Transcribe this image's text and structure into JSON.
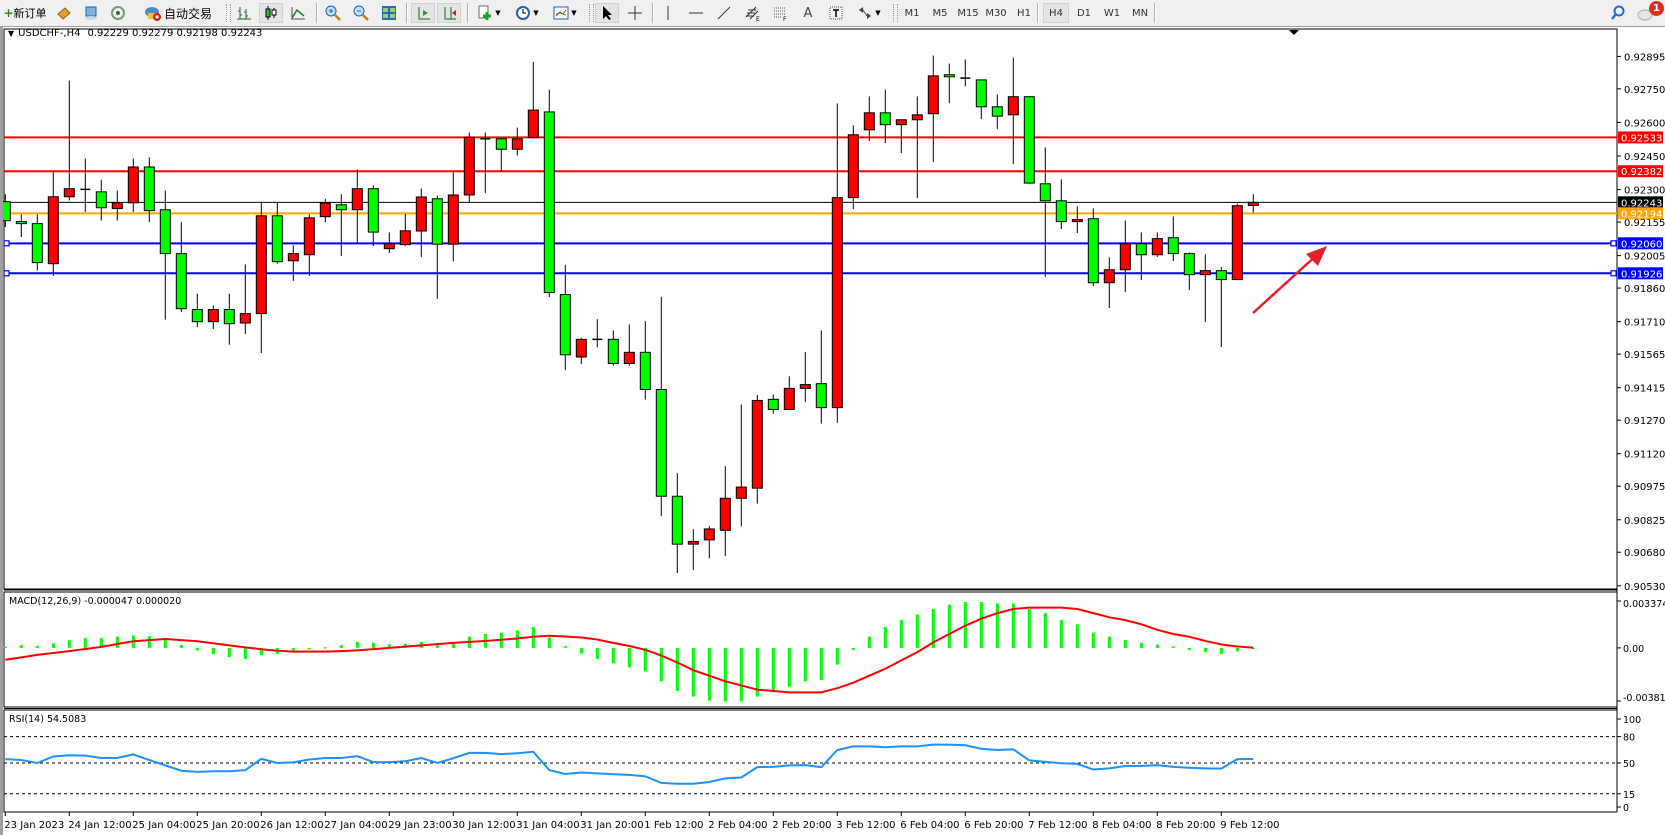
{
  "toolbar": {
    "new_order_label": "新订单",
    "autotrading_label": "自动交易",
    "icons": [
      "new-order-icon",
      "market-watch-icon",
      "data-window-icon",
      "navigator-icon",
      "autotrading-icon",
      "bar-chart-icon",
      "candlestick-chart-icon",
      "line-chart-icon",
      "zoom-in-icon",
      "zoom-out-icon",
      "tile-windows-icon",
      "auto-scroll-icon",
      "chart-shift-icon",
      "new-chart-icon",
      "periods-icon",
      "templates-icon",
      "cursor-icon",
      "crosshair-icon",
      "vertical-line-icon",
      "horizontal-line-icon",
      "trendline-icon",
      "fibonacci-expansion-icon",
      "fibonacci-fan-icon",
      "text-icon",
      "text-label-icon",
      "arrows-icon",
      "search-icon",
      "notifications-icon"
    ],
    "timeframes": [
      "M1",
      "M5",
      "M15",
      "M30",
      "H1",
      "H4",
      "D1",
      "W1",
      "MN"
    ],
    "selected_timeframe": "H4",
    "notification_count": "1"
  },
  "chart_header": {
    "symbol_period": "USDCHF-,H4",
    "ohlc": "0.92229 0.92279 0.92198 0.92243"
  },
  "chart_data": {
    "type": "candlestick",
    "symbol": "USDCHF-",
    "timeframe": "H4",
    "ylim": [
      0.9053,
      0.92895
    ],
    "price_ticks": [
      "0.92895",
      "0.92750",
      "0.92600",
      "0.92450",
      "0.92300",
      "0.92155",
      "0.92005",
      "0.91860",
      "0.91710",
      "0.91565",
      "0.91415",
      "0.91270",
      "0.91120",
      "0.90975",
      "0.90825",
      "0.90680",
      "0.90530"
    ],
    "x_tick_labels": [
      "23 Jan 2023",
      "24 Jan 12:00",
      "25 Jan 04:00",
      "25 Jan 20:00",
      "26 Jan 12:00",
      "27 Jan 04:00",
      "29 Jan 23:00",
      "30 Jan 12:00",
      "31 Jan 04:00",
      "31 Jan 20:00",
      "1 Feb 12:00",
      "2 Feb 04:00",
      "2 Feb 20:00",
      "3 Feb 12:00",
      "6 Feb 04:00",
      "6 Feb 20:00",
      "7 Feb 12:00",
      "8 Feb 04:00",
      "8 Feb 20:00",
      "9 Feb 12:00"
    ],
    "x_tick_every_candles": 4,
    "colors": {
      "bull": "#ff0000",
      "bear": "#00ff00",
      "outline": "#000000"
    },
    "candles_ohlc": [
      [
        0.92246,
        0.92279,
        0.92133,
        0.92161
      ],
      [
        0.92157,
        0.92189,
        0.92088,
        0.92148
      ],
      [
        0.92148,
        0.92189,
        0.91939,
        0.91974
      ],
      [
        0.91969,
        0.92378,
        0.91914,
        0.92268
      ],
      [
        0.92268,
        0.92787,
        0.92252,
        0.92304
      ],
      [
        0.92301,
        0.92439,
        0.922,
        0.92301
      ],
      [
        0.9229,
        0.92344,
        0.92162,
        0.92219
      ],
      [
        0.92215,
        0.92296,
        0.92162,
        0.92241
      ],
      [
        0.92241,
        0.92439,
        0.922,
        0.92401
      ],
      [
        0.92401,
        0.92444,
        0.92155,
        0.92206
      ],
      [
        0.9221,
        0.92296,
        0.91719,
        0.92014
      ],
      [
        0.92014,
        0.92154,
        0.91753,
        0.91768
      ],
      [
        0.91764,
        0.91835,
        0.91686,
        0.9171
      ],
      [
        0.9171,
        0.91783,
        0.91677,
        0.91764
      ],
      [
        0.91764,
        0.91835,
        0.91607,
        0.91701
      ],
      [
        0.91704,
        0.91966,
        0.91655,
        0.91746
      ],
      [
        0.91746,
        0.92246,
        0.9157,
        0.92183
      ],
      [
        0.92183,
        0.9224,
        0.91969,
        0.91978
      ],
      [
        0.91982,
        0.92051,
        0.91892,
        0.92014
      ],
      [
        0.92009,
        0.92189,
        0.91914,
        0.92174
      ],
      [
        0.92179,
        0.92259,
        0.92155,
        0.9224
      ],
      [
        0.92232,
        0.92279,
        0.92003,
        0.9221
      ],
      [
        0.9221,
        0.9239,
        0.92063,
        0.92304
      ],
      [
        0.92304,
        0.92319,
        0.92048,
        0.9211
      ],
      [
        0.92036,
        0.92109,
        0.92017,
        0.92058
      ],
      [
        0.92054,
        0.92192,
        0.92048,
        0.92116
      ],
      [
        0.92115,
        0.92305,
        0.91998,
        0.92267
      ],
      [
        0.92259,
        0.92273,
        0.91812,
        0.92056
      ],
      [
        0.92056,
        0.92377,
        0.91979,
        0.92276
      ],
      [
        0.92276,
        0.92555,
        0.92241,
        0.92533
      ],
      [
        0.92527,
        0.92555,
        0.92284,
        0.92527
      ],
      [
        0.92527,
        0.92527,
        0.92383,
        0.9248
      ],
      [
        0.9248,
        0.92577,
        0.92453,
        0.92527
      ],
      [
        0.92533,
        0.92871,
        0.92533,
        0.92655
      ],
      [
        0.92647,
        0.92746,
        0.9182,
        0.9184
      ],
      [
        0.91831,
        0.91964,
        0.91495,
        0.91562
      ],
      [
        0.91552,
        0.91638,
        0.91521,
        0.91631
      ],
      [
        0.91631,
        0.91721,
        0.91596,
        0.91631
      ],
      [
        0.91631,
        0.91671,
        0.91513,
        0.91523
      ],
      [
        0.91523,
        0.91698,
        0.91513,
        0.91573
      ],
      [
        0.91573,
        0.91712,
        0.91362,
        0.91407
      ],
      [
        0.91407,
        0.91821,
        0.90841,
        0.9093
      ],
      [
        0.9093,
        0.91033,
        0.90587,
        0.90716
      ],
      [
        0.90716,
        0.90783,
        0.906,
        0.90728
      ],
      [
        0.90735,
        0.90796,
        0.90653,
        0.90784
      ],
      [
        0.90778,
        0.91064,
        0.90663,
        0.90921
      ],
      [
        0.90921,
        0.9134,
        0.90795,
        0.90971
      ],
      [
        0.90966,
        0.91382,
        0.90897,
        0.91358
      ],
      [
        0.91363,
        0.91385,
        0.91299,
        0.91318
      ],
      [
        0.91318,
        0.91466,
        0.91318,
        0.91412
      ],
      [
        0.91412,
        0.91574,
        0.91352,
        0.91429
      ],
      [
        0.91433,
        0.91671,
        0.91255,
        0.91326
      ],
      [
        0.91326,
        0.92685,
        0.91258,
        0.92264
      ],
      [
        0.92264,
        0.92587,
        0.92213,
        0.92545
      ],
      [
        0.92567,
        0.92716,
        0.92517,
        0.92643
      ],
      [
        0.92643,
        0.92747,
        0.92508,
        0.9259
      ],
      [
        0.9259,
        0.92612,
        0.92463,
        0.92612
      ],
      [
        0.92612,
        0.92716,
        0.92262,
        0.92634
      ],
      [
        0.92639,
        0.92899,
        0.92423,
        0.92808
      ],
      [
        0.92813,
        0.92863,
        0.92686,
        0.92804
      ],
      [
        0.92798,
        0.92881,
        0.92762,
        0.92798
      ],
      [
        0.9279,
        0.9279,
        0.92615,
        0.9267
      ],
      [
        0.9267,
        0.92725,
        0.9257,
        0.92628
      ],
      [
        0.92634,
        0.9289,
        0.92414,
        0.92715
      ],
      [
        0.92715,
        0.92715,
        0.92326,
        0.92329
      ],
      [
        0.92326,
        0.92488,
        0.9191,
        0.9225
      ],
      [
        0.9225,
        0.92346,
        0.92124,
        0.92157
      ],
      [
        0.92157,
        0.92225,
        0.92106,
        0.92166
      ],
      [
        0.9217,
        0.92216,
        0.91869,
        0.91884
      ],
      [
        0.91884,
        0.91997,
        0.91771,
        0.91942
      ],
      [
        0.91942,
        0.92162,
        0.91843,
        0.92058
      ],
      [
        0.92058,
        0.92109,
        0.91896,
        0.92009
      ],
      [
        0.92009,
        0.92109,
        0.91999,
        0.92081
      ],
      [
        0.92085,
        0.9218,
        0.91981,
        0.92014
      ],
      [
        0.92014,
        0.9202,
        0.91852,
        0.9192
      ],
      [
        0.9192,
        0.92011,
        0.91709,
        0.91938
      ],
      [
        0.91938,
        0.91954,
        0.91597,
        0.91898
      ],
      [
        0.91898,
        0.92237,
        0.91898,
        0.92228
      ],
      [
        0.92229,
        0.92279,
        0.92198,
        0.92243
      ]
    ],
    "horizontal_lines": [
      {
        "price": "0.92533",
        "color": "#ff0000"
      },
      {
        "price": "0.92382",
        "color": "#ff0000"
      },
      {
        "price": "0.92243",
        "color": "#000000",
        "kind": "current-bid"
      },
      {
        "price": "0.92194",
        "color": "#ffa500"
      },
      {
        "price": "0.92060",
        "color": "#0000ff"
      },
      {
        "price": "0.91926",
        "color": "#0000ff"
      }
    ],
    "annotation_arrow_color": "#e8202a",
    "macd": {
      "label": "MACD(12,26,9) -0.000047 0.000020",
      "axis_ticks": [
        "0.003374",
        "0.00",
        "-0.003819"
      ],
      "ylim": [
        -0.003819,
        0.003374
      ],
      "histogram_color": "#00ff00",
      "signal_color": "#ff0000",
      "histogram": [
        7e-05,
        0.0002,
        0.00014,
        0.00034,
        0.00055,
        0.0007,
        0.0007,
        0.0008,
        0.0009,
        0.00085,
        0.0006,
        0.0002,
        -0.00018,
        -0.00045,
        -0.00066,
        -0.0008,
        -0.00052,
        -0.00043,
        -0.0002,
        -0.0001,
        5e-05,
        0.0002,
        0.00043,
        0.00036,
        0.00027,
        0.0003,
        0.00043,
        0.00036,
        0.00043,
        0.0008,
        0.001,
        0.0011,
        0.00125,
        0.0015,
        0.00075,
        0.00013,
        -0.0004,
        -0.0008,
        -0.0011,
        -0.0014,
        -0.0017,
        -0.0024,
        -0.0031,
        -0.0035,
        -0.0038,
        -0.00385,
        -0.00385,
        -0.0035,
        -0.0032,
        -0.0028,
        -0.0024,
        -0.0023,
        -0.0012,
        -0.00014,
        0.0008,
        0.0015,
        0.002,
        0.0024,
        0.0028,
        0.0031,
        0.0033,
        0.0033,
        0.0032,
        0.0032,
        0.0028,
        0.0025,
        0.002,
        0.0017,
        0.0011,
        0.0008,
        0.00057,
        0.00036,
        0.00023,
        0.0001,
        -0.00014,
        -0.0003,
        -0.00043,
        -0.00025,
        -4.7e-05
      ],
      "signal": [
        -0.00085,
        -0.00068,
        -0.0005,
        -0.00037,
        -0.00023,
        -8e-05,
        7e-05,
        0.00028,
        0.00048,
        0.00056,
        0.00064,
        0.00056,
        0.00048,
        0.00033,
        0.00018,
        4e-05,
        -0.0001,
        -0.0002,
        -0.00027,
        -0.00027,
        -0.00027,
        -0.00023,
        -0.00018,
        -9e-05,
        0,
        9e-05,
        0.00018,
        0.00027,
        0.00036,
        0.00043,
        0.0005,
        0.00059,
        0.00068,
        0.0008,
        0.00087,
        0.00082,
        0.00075,
        0.0006,
        0.00036,
        0.00014,
        -0.00014,
        -0.00055,
        -0.00105,
        -0.0016,
        -0.002,
        -0.0024,
        -0.0027,
        -0.003,
        -0.0031,
        -0.0032,
        -0.0032,
        -0.0032,
        -0.0029,
        -0.0025,
        -0.002,
        -0.0015,
        -0.0009,
        -0.0003,
        0.0004,
        0.001,
        0.0016,
        0.0021,
        0.0025,
        0.0028,
        0.0029,
        0.0029,
        0.0029,
        0.0028,
        0.0025,
        0.0022,
        0.002,
        0.0017,
        0.0013,
        0.001,
        0.0008,
        0.0005,
        0.00025,
        0.0001,
        2e-05
      ]
    },
    "rsi": {
      "label": "RSI(14) 54.5083",
      "axis_ticks": [
        "100",
        "80",
        "50",
        "15",
        "0"
      ],
      "levels": [
        80,
        50,
        15
      ],
      "ylim": [
        0,
        100
      ],
      "color": "#1e90ff",
      "values": [
        54.4,
        53.4,
        50,
        57.4,
        58.8,
        58.4,
        55.7,
        55.7,
        59.8,
        53.4,
        47.3,
        41.2,
        39.9,
        40.6,
        40.6,
        41.9,
        54.7,
        50,
        50.7,
        54,
        55.7,
        55.7,
        57.8,
        51,
        51,
        52,
        55.7,
        50,
        55.4,
        61.5,
        61.5,
        60.1,
        61.1,
        62.8,
        41.9,
        37.5,
        39.2,
        38.2,
        37.2,
        36.5,
        34.8,
        27.4,
        26.4,
        26.4,
        28.4,
        32.5,
        33.5,
        45.3,
        45.6,
        47.3,
        47.6,
        45.3,
        64.8,
        68.9,
        68.9,
        67.9,
        68.9,
        68.9,
        70.9,
        70.9,
        70.2,
        66.2,
        64.8,
        65.5,
        53,
        51.3,
        49.7,
        49,
        42.6,
        43.9,
        46.6,
        46.6,
        47.6,
        45.6,
        44.6,
        43.9,
        43.6,
        54.4,
        54.5083
      ]
    }
  }
}
